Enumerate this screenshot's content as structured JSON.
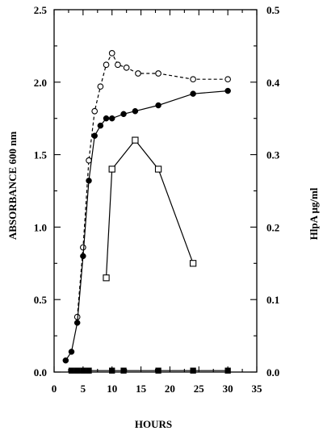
{
  "chart_data": {
    "type": "line",
    "title": "",
    "xlabel": "HOURS",
    "ylabel": "ABSORBANCE  600 nm",
    "y2label": "HlpA  μg/ml",
    "xlim": [
      0,
      35
    ],
    "ylim": [
      0,
      2.5
    ],
    "y2lim": [
      0,
      0.5
    ],
    "x_ticks": [
      "0",
      "5",
      "10",
      "15",
      "20",
      "25",
      "30",
      "35"
    ],
    "y_ticks": [
      "0.0",
      "0.5",
      "1.0",
      "1.5",
      "2.0",
      "2.5"
    ],
    "y2_ticks": [
      "0.0",
      "0.1",
      "0.2",
      "0.3",
      "0.4",
      "0.5"
    ],
    "grid": false,
    "legend": "none",
    "series": [
      {
        "axis": "left",
        "marker": "open-circle",
        "line_style": "dashed",
        "x": [
          4,
          5,
          6,
          7,
          8,
          9,
          10,
          11,
          12.5,
          14.5,
          18,
          24,
          30
        ],
        "y": [
          0.38,
          0.86,
          1.46,
          1.8,
          1.97,
          2.12,
          2.2,
          2.12,
          2.1,
          2.06,
          2.06,
          2.02,
          2.02
        ]
      },
      {
        "axis": "left",
        "marker": "filled-circle",
        "line_style": "solid",
        "x": [
          2,
          3,
          4,
          5,
          6,
          7,
          8,
          9,
          10,
          12,
          14,
          18,
          24,
          30
        ],
        "y": [
          0.08,
          0.14,
          0.34,
          0.8,
          1.32,
          1.63,
          1.7,
          1.75,
          1.75,
          1.78,
          1.8,
          1.84,
          1.92,
          1.94
        ]
      },
      {
        "axis": "right",
        "marker": "open-square",
        "line_style": "solid",
        "x": [
          9,
          10,
          14,
          18,
          24
        ],
        "y": [
          0.13,
          0.28,
          0.32,
          0.28,
          0.15
        ]
      },
      {
        "axis": "right",
        "marker": "filled-square",
        "line_style": "solid",
        "x": [
          3,
          4,
          5,
          6,
          10,
          12,
          18,
          24,
          30
        ],
        "y": [
          0.002,
          0.002,
          0.002,
          0.002,
          0.002,
          0.002,
          0.002,
          0.002,
          0.002
        ]
      }
    ]
  }
}
